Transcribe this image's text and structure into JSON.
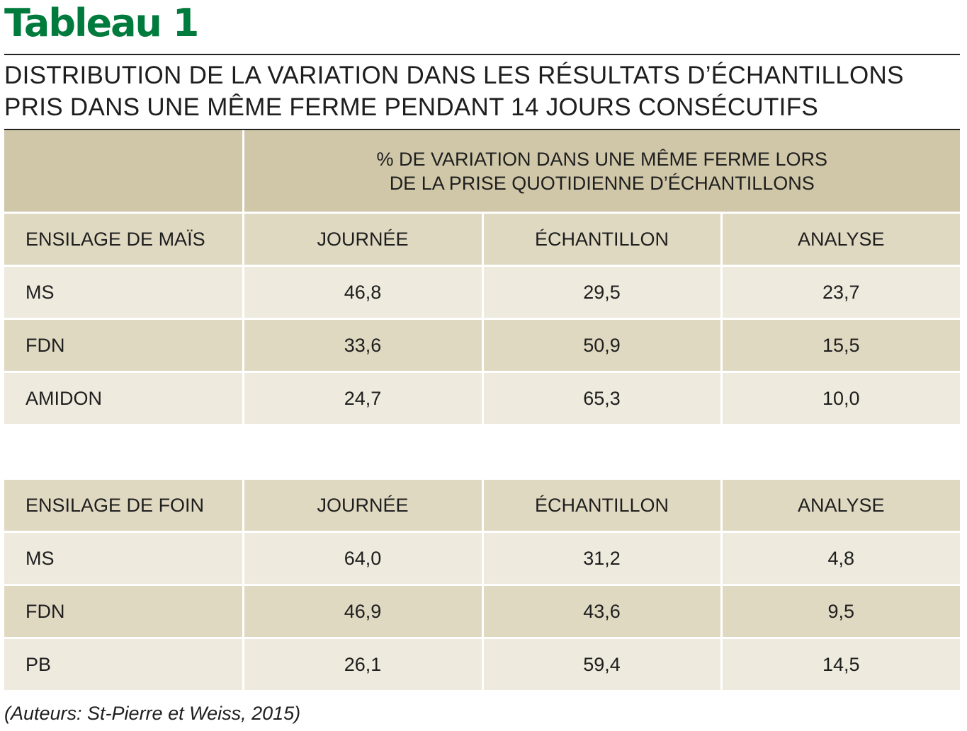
{
  "title": "Tableau 1",
  "subtitle": {
    "line1": "DISTRIBUTION DE LA VARIATION DANS LES RÉSULTATS D’ÉCHANTILLONS",
    "line2": "PRIS DANS UNE MÊME FERME PENDANT 14 JOURS CONSÉCUTIFS"
  },
  "header": {
    "line1": "% DE VARIATION DANS UNE MÊME FERME LORS",
    "line2": "DE LA PRISE QUOTIDIENNE D’ÉCHANTILLONS"
  },
  "tables": [
    {
      "columns": [
        "ENSILAGE DE MAÏS",
        "JOURNÉE",
        "ÉCHANTILLON",
        "ANALYSE"
      ],
      "rows": [
        [
          "MS",
          "46,8",
          "29,5",
          "23,7"
        ],
        [
          "FDN",
          "33,6",
          "50,9",
          "15,5"
        ],
        [
          "AMIDON",
          "24,7",
          "65,3",
          "10,0"
        ]
      ]
    },
    {
      "columns": [
        "ENSILAGE DE FOIN",
        "JOURNÉE",
        "ÉCHANTILLON",
        "ANALYSE"
      ],
      "rows": [
        [
          "MS",
          "64,0",
          "31,2",
          "4,8"
        ],
        [
          "FDN",
          "46,9",
          "43,6",
          "9,5"
        ],
        [
          "PB",
          "26,1",
          "59,4",
          "14,5"
        ]
      ]
    }
  ],
  "source": "(Auteurs: St-Pierre et Weiss, 2015)",
  "colors": {
    "title": "#007a3d",
    "header_bg": "#cfc7a8",
    "row_dark": "#e0d9c2",
    "row_light": "#eeeadd"
  }
}
